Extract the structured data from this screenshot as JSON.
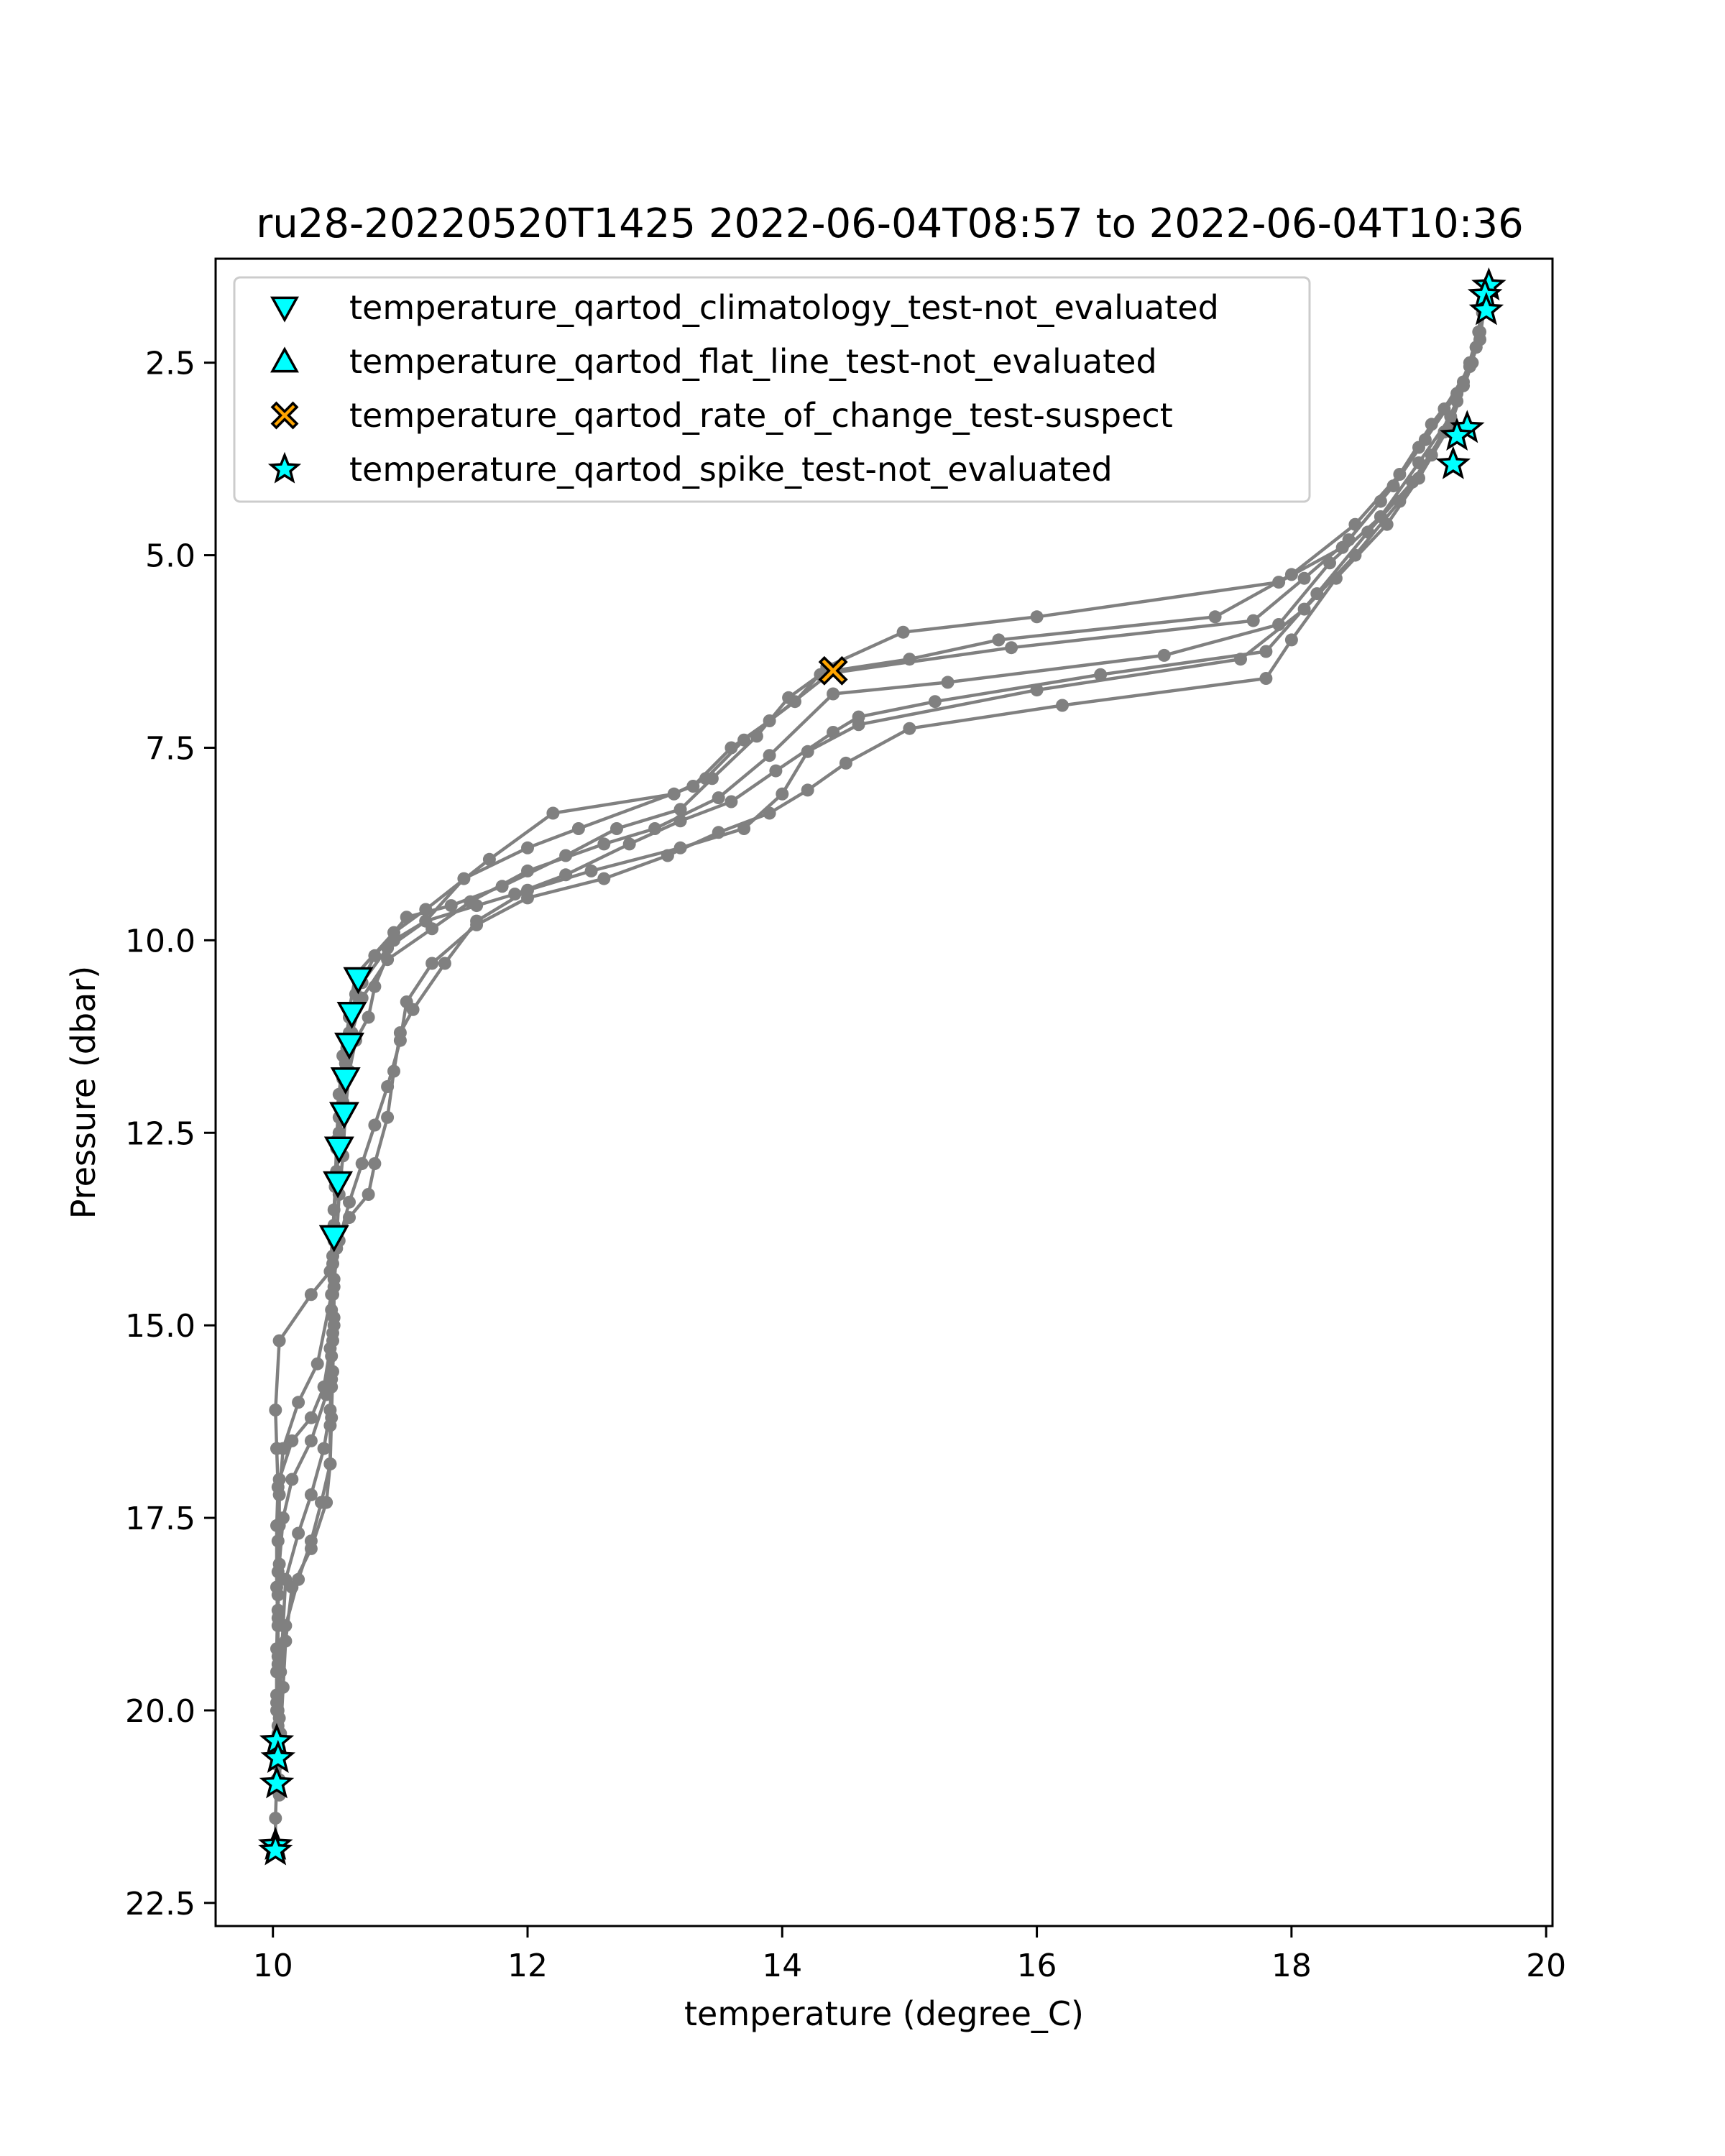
{
  "chart_data": {
    "type": "scatter",
    "title": "ru28-20220520T1425 2022-06-04T08:57 to 2022-06-04T10:36",
    "xlabel": "temperature (degree_C)",
    "ylabel": "Pressure (dbar)",
    "xlim": [
      9.55,
      20.05
    ],
    "ylim": [
      22.8,
      1.15
    ],
    "y_inverted": true,
    "x_ticks": [
      10,
      12,
      14,
      16,
      18,
      20
    ],
    "x_tick_labels": [
      "10",
      "12",
      "14",
      "16",
      "18",
      "20"
    ],
    "y_ticks": [
      2.5,
      5.0,
      7.5,
      10.0,
      12.5,
      15.0,
      17.5,
      20.0,
      22.5
    ],
    "y_tick_labels": [
      "2.5",
      "5.0",
      "7.5",
      "10.0",
      "12.5",
      "15.0",
      "17.5",
      "20.0",
      "22.5"
    ],
    "grid": false,
    "legend_position": "top",
    "profile_color": "#808080",
    "profiles": [
      {
        "points": [
          [
            19.52,
            1.7
          ],
          [
            19.48,
            2.2
          ],
          [
            19.4,
            2.55
          ],
          [
            19.2,
            3.1
          ],
          [
            19.0,
            3.6
          ],
          [
            18.7,
            4.3
          ],
          [
            18.4,
            4.9
          ],
          [
            17.9,
            5.35
          ],
          [
            16.0,
            5.8
          ],
          [
            14.95,
            6.0
          ],
          [
            14.35,
            6.45
          ],
          [
            14.1,
            6.9
          ],
          [
            13.7,
            7.4
          ],
          [
            13.4,
            7.9
          ],
          [
            13.15,
            8.1
          ],
          [
            12.2,
            8.35
          ],
          [
            11.7,
            8.95
          ],
          [
            11.2,
            9.6
          ],
          [
            10.95,
            9.9
          ],
          [
            10.65,
            10.45
          ],
          [
            10.6,
            10.9
          ],
          [
            10.58,
            11.4
          ],
          [
            10.55,
            11.8
          ],
          [
            10.52,
            12.3
          ],
          [
            10.5,
            12.7
          ],
          [
            10.49,
            13.2
          ],
          [
            10.47,
            13.8
          ],
          [
            10.45,
            14.3
          ],
          [
            10.3,
            14.6
          ],
          [
            10.05,
            15.2
          ],
          [
            10.02,
            16.1
          ],
          [
            10.03,
            16.6
          ],
          [
            10.04,
            17.1
          ],
          [
            10.03,
            17.6
          ],
          [
            10.03,
            18.4
          ],
          [
            10.04,
            18.9
          ],
          [
            10.03,
            19.5
          ],
          [
            10.03,
            20.0
          ],
          [
            10.03,
            20.4
          ],
          [
            10.03,
            20.9
          ],
          [
            10.02,
            21.4
          ],
          [
            10.02,
            21.8
          ]
        ]
      },
      {
        "points": [
          [
            19.53,
            1.55
          ],
          [
            19.47,
            2.1
          ],
          [
            19.35,
            2.75
          ],
          [
            19.1,
            3.3
          ],
          [
            18.85,
            3.95
          ],
          [
            18.5,
            4.6
          ],
          [
            18.0,
            5.25
          ],
          [
            17.4,
            5.8
          ],
          [
            15.7,
            6.1
          ],
          [
            15.0,
            6.35
          ],
          [
            14.4,
            6.5
          ],
          [
            13.9,
            7.15
          ],
          [
            13.6,
            7.5
          ],
          [
            13.3,
            8.0
          ],
          [
            12.4,
            8.55
          ],
          [
            12.0,
            8.8
          ],
          [
            11.5,
            9.2
          ],
          [
            11.2,
            9.75
          ],
          [
            10.9,
            10.1
          ],
          [
            10.7,
            10.55
          ],
          [
            10.6,
            11.0
          ],
          [
            10.55,
            11.5
          ],
          [
            10.52,
            12.0
          ],
          [
            10.5,
            12.6
          ],
          [
            10.49,
            13.2
          ],
          [
            10.48,
            13.9
          ],
          [
            10.46,
            14.6
          ],
          [
            10.35,
            15.5
          ],
          [
            10.2,
            16.0
          ],
          [
            10.08,
            16.6
          ],
          [
            10.05,
            17.2
          ],
          [
            10.04,
            17.8
          ],
          [
            10.04,
            18.5
          ],
          [
            10.03,
            19.2
          ],
          [
            10.03,
            19.8
          ],
          [
            10.04,
            20.3
          ],
          [
            10.04,
            20.7
          ]
        ]
      },
      {
        "points": [
          [
            19.52,
            1.6
          ],
          [
            19.45,
            2.3
          ],
          [
            19.3,
            2.9
          ],
          [
            19.05,
            3.5
          ],
          [
            18.8,
            4.1
          ],
          [
            18.45,
            4.8
          ],
          [
            18.1,
            5.3
          ],
          [
            17.7,
            5.85
          ],
          [
            15.8,
            6.2
          ],
          [
            14.3,
            6.55
          ],
          [
            14.05,
            6.85
          ],
          [
            13.8,
            7.35
          ],
          [
            13.45,
            7.9
          ],
          [
            13.2,
            8.3
          ],
          [
            12.7,
            8.55
          ],
          [
            12.3,
            8.9
          ],
          [
            11.8,
            9.3
          ],
          [
            11.4,
            9.55
          ],
          [
            11.05,
            9.7
          ],
          [
            10.8,
            10.2
          ],
          [
            10.65,
            10.7
          ],
          [
            10.6,
            11.2
          ],
          [
            10.57,
            11.6
          ],
          [
            10.55,
            12.1
          ],
          [
            10.52,
            12.5
          ],
          [
            10.5,
            13.0
          ],
          [
            10.48,
            13.5
          ],
          [
            10.47,
            14.1
          ],
          [
            10.46,
            14.8
          ],
          [
            10.45,
            15.3
          ],
          [
            10.4,
            15.8
          ],
          [
            10.3,
            16.2
          ],
          [
            10.15,
            16.5
          ],
          [
            10.05,
            17.0
          ],
          [
            10.05,
            17.6
          ],
          [
            10.04,
            18.2
          ],
          [
            10.04,
            18.8
          ],
          [
            10.04,
            19.4
          ],
          [
            10.04,
            20.0
          ],
          [
            10.05,
            20.5
          ],
          [
            10.05,
            20.9
          ]
        ]
      },
      {
        "points": [
          [
            19.5,
            1.85
          ],
          [
            19.4,
            2.5
          ],
          [
            19.25,
            3.2
          ],
          [
            19.0,
            3.8
          ],
          [
            18.7,
            4.5
          ],
          [
            18.3,
            5.1
          ],
          [
            17.9,
            5.9
          ],
          [
            17.0,
            6.3
          ],
          [
            15.3,
            6.65
          ],
          [
            14.4,
            6.8
          ],
          [
            13.9,
            7.6
          ],
          [
            13.5,
            8.15
          ],
          [
            13.0,
            8.55
          ],
          [
            12.6,
            8.75
          ],
          [
            12.0,
            9.1
          ],
          [
            11.55,
            9.5
          ],
          [
            11.25,
            9.85
          ],
          [
            10.9,
            10.25
          ],
          [
            10.7,
            10.75
          ],
          [
            10.62,
            11.2
          ],
          [
            10.58,
            11.7
          ],
          [
            10.55,
            12.2
          ],
          [
            10.52,
            12.6
          ],
          [
            10.5,
            13.1
          ],
          [
            10.48,
            13.7
          ],
          [
            10.47,
            14.2
          ],
          [
            10.48,
            14.9
          ],
          [
            10.46,
            15.4
          ],
          [
            10.42,
            15.9
          ],
          [
            10.3,
            16.5
          ],
          [
            10.15,
            17.0
          ],
          [
            10.08,
            17.5
          ],
          [
            10.05,
            18.1
          ],
          [
            10.04,
            18.7
          ],
          [
            10.04,
            19.3
          ],
          [
            10.03,
            19.9
          ],
          [
            10.03,
            20.6
          ]
        ]
      },
      {
        "points": [
          [
            19.48,
            2.1
          ],
          [
            19.35,
            2.8
          ],
          [
            19.2,
            3.4
          ],
          [
            18.95,
            4.05
          ],
          [
            18.6,
            4.7
          ],
          [
            18.2,
            5.5
          ],
          [
            17.8,
            6.25
          ],
          [
            16.5,
            6.55
          ],
          [
            15.2,
            6.9
          ],
          [
            14.6,
            7.1
          ],
          [
            14.4,
            7.3
          ],
          [
            13.95,
            7.8
          ],
          [
            13.6,
            8.2
          ],
          [
            13.2,
            8.45
          ],
          [
            12.8,
            8.75
          ],
          [
            12.3,
            9.15
          ],
          [
            11.9,
            9.4
          ],
          [
            11.6,
            9.55
          ],
          [
            11.2,
            9.75
          ],
          [
            10.95,
            10.0
          ],
          [
            10.8,
            10.6
          ],
          [
            10.75,
            11.0
          ],
          [
            10.65,
            11.3
          ],
          [
            10.6,
            11.7
          ],
          [
            10.57,
            12.2
          ],
          [
            10.55,
            12.8
          ],
          [
            10.52,
            13.3
          ],
          [
            10.5,
            13.9
          ],
          [
            10.48,
            14.5
          ],
          [
            10.47,
            15.1
          ],
          [
            10.46,
            15.7
          ],
          [
            10.45,
            16.1
          ],
          [
            10.4,
            16.6
          ],
          [
            10.3,
            17.2
          ],
          [
            10.2,
            17.7
          ],
          [
            10.1,
            18.3
          ],
          [
            10.08,
            18.9
          ],
          [
            10.06,
            19.5
          ],
          [
            10.05,
            20.1
          ]
        ]
      },
      {
        "points": [
          [
            19.45,
            2.3
          ],
          [
            19.3,
            3.0
          ],
          [
            19.1,
            3.7
          ],
          [
            18.85,
            4.3
          ],
          [
            18.5,
            5.0
          ],
          [
            18.1,
            5.7
          ],
          [
            17.6,
            6.35
          ],
          [
            16.0,
            6.75
          ],
          [
            14.6,
            7.2
          ],
          [
            14.2,
            7.55
          ],
          [
            14.0,
            8.1
          ],
          [
            13.7,
            8.55
          ],
          [
            13.2,
            8.8
          ],
          [
            12.5,
            9.1
          ],
          [
            12.0,
            9.35
          ],
          [
            11.6,
            9.75
          ],
          [
            11.35,
            10.3
          ],
          [
            11.1,
            10.9
          ],
          [
            11.0,
            11.2
          ],
          [
            10.95,
            11.7
          ],
          [
            10.9,
            12.3
          ],
          [
            10.8,
            12.9
          ],
          [
            10.75,
            13.3
          ],
          [
            10.6,
            13.6
          ],
          [
            10.5,
            14.0
          ],
          [
            10.47,
            14.6
          ],
          [
            10.47,
            15.2
          ],
          [
            10.46,
            15.8
          ],
          [
            10.45,
            16.3
          ],
          [
            10.45,
            16.8
          ],
          [
            10.38,
            17.3
          ],
          [
            10.3,
            17.8
          ],
          [
            10.2,
            18.3
          ],
          [
            10.1,
            18.9
          ],
          [
            10.05,
            19.5
          ],
          [
            10.04,
            20.2
          ],
          [
            10.03,
            20.7
          ]
        ]
      },
      {
        "points": [
          [
            19.42,
            2.5
          ],
          [
            19.25,
            3.3
          ],
          [
            19.0,
            4.0
          ],
          [
            18.75,
            4.6
          ],
          [
            18.35,
            5.3
          ],
          [
            18.0,
            6.1
          ],
          [
            17.8,
            6.6
          ],
          [
            16.2,
            6.95
          ],
          [
            15.0,
            7.25
          ],
          [
            14.5,
            7.7
          ],
          [
            14.2,
            8.05
          ],
          [
            13.9,
            8.35
          ],
          [
            13.5,
            8.6
          ],
          [
            13.1,
            8.9
          ],
          [
            12.6,
            9.2
          ],
          [
            12.0,
            9.45
          ],
          [
            11.6,
            9.8
          ],
          [
            11.25,
            10.3
          ],
          [
            11.05,
            10.8
          ],
          [
            11.0,
            11.3
          ],
          [
            10.9,
            11.9
          ],
          [
            10.8,
            12.4
          ],
          [
            10.7,
            12.9
          ],
          [
            10.6,
            13.4
          ],
          [
            10.52,
            13.9
          ],
          [
            10.48,
            14.4
          ],
          [
            10.48,
            15.0
          ],
          [
            10.47,
            15.6
          ],
          [
            10.46,
            16.2
          ],
          [
            10.45,
            16.8
          ],
          [
            10.42,
            17.3
          ],
          [
            10.3,
            17.9
          ],
          [
            10.15,
            18.4
          ],
          [
            10.1,
            19.1
          ],
          [
            10.08,
            19.7
          ],
          [
            10.06,
            20.3
          ],
          [
            10.05,
            21.1
          ]
        ]
      }
    ],
    "flag_series": [
      {
        "name": "temperature_qartod_climatology_test-not_evaluated",
        "marker": "triangle-down",
        "color": "#00ffff",
        "points": [
          [
            10.67,
            10.5
          ],
          [
            10.62,
            10.95
          ],
          [
            10.6,
            11.35
          ],
          [
            10.57,
            11.8
          ],
          [
            10.56,
            12.25
          ],
          [
            10.52,
            12.7
          ],
          [
            10.51,
            13.15
          ],
          [
            10.48,
            13.85
          ]
        ]
      },
      {
        "name": "temperature_qartod_flat_line_test-not_evaluated",
        "marker": "triangle-up",
        "color": "#00ffff",
        "points": []
      },
      {
        "name": "temperature_qartod_rate_of_change_test-suspect",
        "marker": "x-filled",
        "color": "#ffa500",
        "points": [
          [
            14.4,
            6.5
          ]
        ]
      },
      {
        "name": "temperature_qartod_spike_test-not_evaluated",
        "marker": "star",
        "color": "#00ffff",
        "points": [
          [
            19.55,
            1.5
          ],
          [
            19.52,
            1.62
          ],
          [
            19.53,
            1.82
          ],
          [
            19.38,
            3.35
          ],
          [
            19.3,
            3.45
          ],
          [
            19.27,
            3.82
          ],
          [
            10.03,
            20.4
          ],
          [
            10.04,
            20.62
          ],
          [
            10.03,
            20.95
          ],
          [
            10.02,
            21.75
          ],
          [
            10.02,
            21.82
          ]
        ]
      }
    ]
  }
}
